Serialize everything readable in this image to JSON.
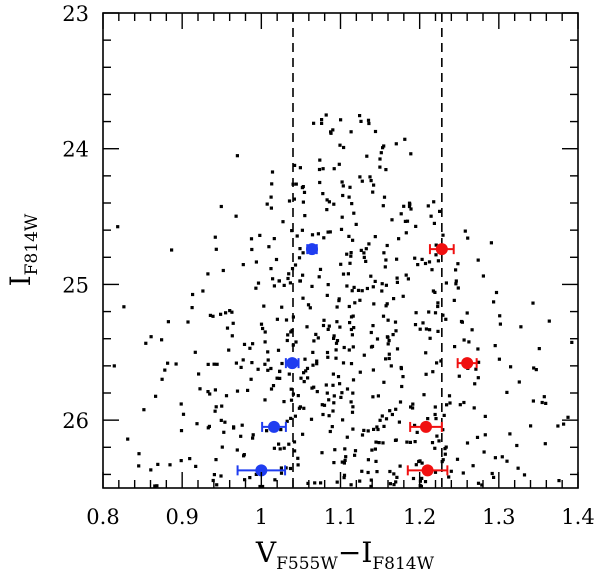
{
  "chart_data": {
    "type": "scatter",
    "xlabel": {
      "main_x": "V",
      "sub_x": "F555W",
      "sep": "−",
      "main_y": "I",
      "sub_y": "F814W"
    },
    "ylabel": {
      "main": "I",
      "sub": "F814W"
    },
    "xlim": [
      0.8,
      1.4
    ],
    "ylim": [
      26.5,
      23
    ],
    "y_inverted": true,
    "x_ticks": [
      "0.8",
      "0.9",
      "1",
      "1.1",
      "1.2",
      "1.3",
      "1.4"
    ],
    "y_ticks": [
      "23",
      "24",
      "25",
      "26"
    ],
    "vertical_lines": [
      1.04,
      1.228
    ],
    "grid": false,
    "colors": {
      "points": "#000000",
      "blue": "#1f3df0",
      "red": "#f01010"
    },
    "blue_points": [
      {
        "x": 1.064,
        "y": 24.74,
        "xerr": 0.006
      },
      {
        "x": 1.039,
        "y": 25.58,
        "xerr": 0.008
      },
      {
        "x": 1.016,
        "y": 26.05,
        "xerr": 0.015
      },
      {
        "x": 1.0,
        "y": 26.37,
        "xerr": 0.03
      }
    ],
    "red_points": [
      {
        "x": 1.228,
        "y": 24.74,
        "xerr": 0.015
      },
      {
        "x": 1.26,
        "y": 25.58,
        "xerr": 0.012
      },
      {
        "x": 1.208,
        "y": 26.05,
        "xerr": 0.02
      },
      {
        "x": 1.21,
        "y": 26.37,
        "xerr": 0.025
      }
    ]
  }
}
